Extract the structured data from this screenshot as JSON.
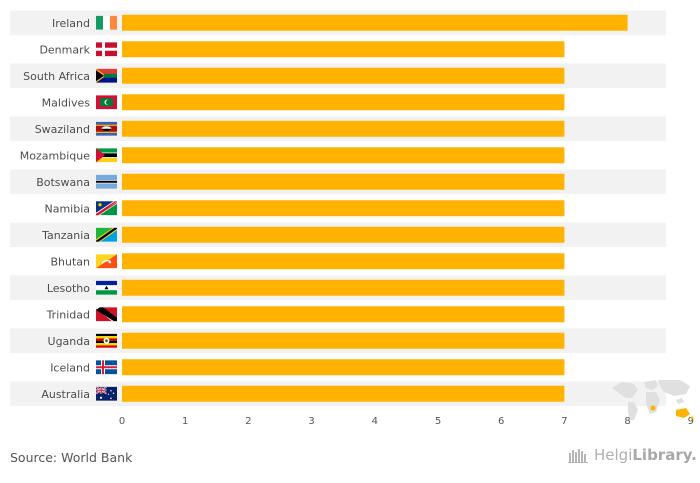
{
  "chart_data": {
    "type": "bar",
    "orientation": "horizontal",
    "categories": [
      "Ireland",
      "Denmark",
      "South Africa",
      "Maldives",
      "Swaziland",
      "Mozambique",
      "Botswana",
      "Namibia",
      "Tanzania",
      "Bhutan",
      "Lesotho",
      "Trinidad",
      "Uganda",
      "Iceland",
      "Australia"
    ],
    "values": [
      8,
      7,
      7,
      7,
      7,
      7,
      7,
      7,
      7,
      7,
      7,
      7,
      7,
      7,
      7
    ],
    "xlim": [
      0,
      9
    ],
    "xticks": [
      "0",
      "1",
      "2",
      "3",
      "4",
      "5",
      "6",
      "7",
      "8",
      "9"
    ],
    "title": "",
    "xlabel": "",
    "ylabel": "",
    "grid": false,
    "legend": "none",
    "bar_color": "#ffb300",
    "band_color": "#f2f2f2",
    "flags": [
      "ireland-flag",
      "denmark-flag",
      "south-africa-flag",
      "maldives-flag",
      "swaziland-flag",
      "mozambique-flag",
      "botswana-flag",
      "namibia-flag",
      "tanzania-flag",
      "bhutan-flag",
      "lesotho-flag",
      "trinidad-flag",
      "uganda-flag",
      "iceland-flag",
      "australia-flag"
    ]
  },
  "footer": {
    "source": "Source: World Bank",
    "brand_part1": "Helgi",
    "brand_part2": "Library."
  }
}
